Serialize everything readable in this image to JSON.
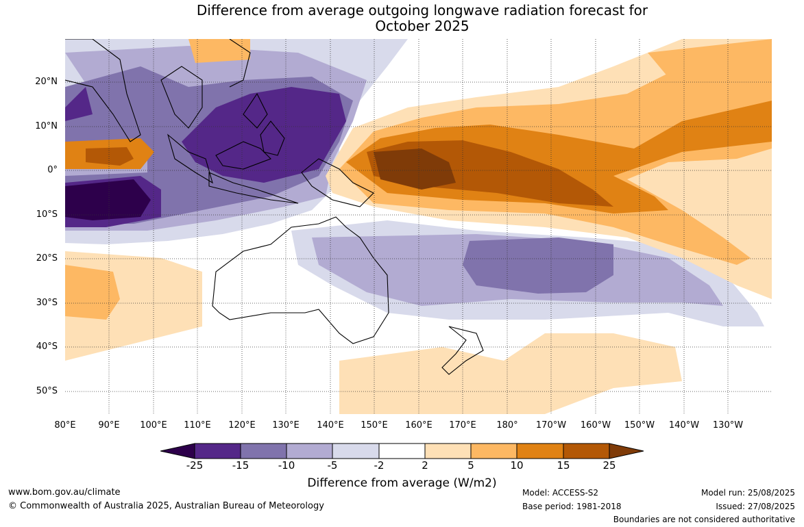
{
  "title_line1": "Difference from average outgoing longwave radiation forecast for",
  "title_line2": "October 2025",
  "lat_labels": [
    "20°N",
    "10°N",
    "0°",
    "10°S",
    "20°S",
    "30°S",
    "40°S",
    "50°S"
  ],
  "lon_labels": [
    "80°E",
    "90°E",
    "100°E",
    "110°E",
    "120°E",
    "130°E",
    "140°E",
    "150°E",
    "160°E",
    "170°E",
    "180°",
    "170°W",
    "160°W",
    "150°W",
    "140°W",
    "130°W"
  ],
  "colorbar": {
    "ticks": [
      "-25",
      "-15",
      "-10",
      "-5",
      "-2",
      "2",
      "5",
      "10",
      "15",
      "25"
    ],
    "colors": [
      "#2d004b",
      "#542788",
      "#8073ac",
      "#b2abd2",
      "#d8daeb",
      "#ffffff",
      "#fee0b6",
      "#fdb863",
      "#e08214",
      "#b35806",
      "#7f3b08"
    ],
    "label": "Difference from average (W/m2)"
  },
  "footer": {
    "website": "www.bom.gov.au/climate",
    "copyright": "© Commonwealth of Australia 2025, Australian Bureau of Meteorology",
    "model": "Model: ACCESS-S2",
    "base_period": "Base period: 1981-2018",
    "model_run": "Model run: 25/08/2025",
    "issued": "Issued: 27/08/2025",
    "disclaimer": "Boundaries are not considered authoritative"
  }
}
